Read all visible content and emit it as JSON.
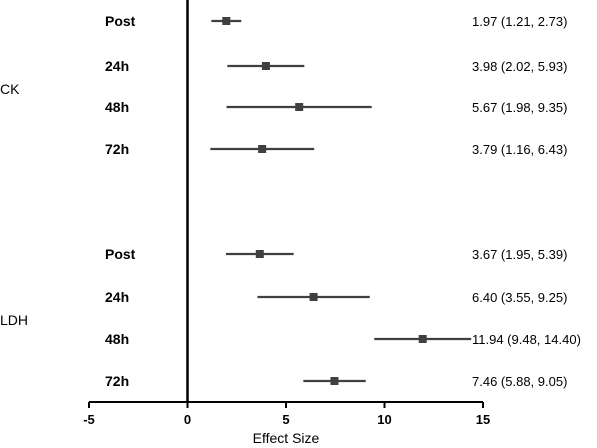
{
  "chart_data": {
    "type": "forest",
    "title": "",
    "xlabel": "Effect Size",
    "xlim": [
      -5,
      15
    ],
    "xticks": [
      -5,
      0,
      5,
      10,
      15
    ],
    "reference_line": 0,
    "colors": {
      "marker": "#404040",
      "axis": "#000000"
    },
    "groups": [
      {
        "name": "CK",
        "rows": [
          {
            "label": "Post",
            "estimate": 1.97,
            "lower": 1.21,
            "upper": 2.73,
            "ci_text": "1.97 (1.21, 2.73)"
          },
          {
            "label": "24h",
            "estimate": 3.98,
            "lower": 2.02,
            "upper": 5.93,
            "ci_text": "3.98 (2.02, 5.93)"
          },
          {
            "label": "48h",
            "estimate": 5.67,
            "lower": 1.98,
            "upper": 9.35,
            "ci_text": "5.67 (1.98, 9.35)"
          },
          {
            "label": "72h",
            "estimate": 3.79,
            "lower": 1.16,
            "upper": 6.43,
            "ci_text": "3.79 (1.16, 6.43)"
          }
        ]
      },
      {
        "name": "LDH",
        "rows": [
          {
            "label": "Post",
            "estimate": 3.67,
            "lower": 1.95,
            "upper": 5.39,
            "ci_text": "3.67 (1.95, 5.39)"
          },
          {
            "label": "24h",
            "estimate": 6.4,
            "lower": 3.55,
            "upper": 9.25,
            "ci_text": "6.40 (3.55, 9.25)"
          },
          {
            "label": "48h",
            "estimate": 11.94,
            "lower": 9.48,
            "upper": 14.4,
            "ci_text": "11.94 (9.48, 14.40)"
          },
          {
            "label": "72h",
            "estimate": 7.46,
            "lower": 5.88,
            "upper": 9.05,
            "ci_text": "7.46 (5.88, 9.05)"
          }
        ]
      }
    ]
  }
}
